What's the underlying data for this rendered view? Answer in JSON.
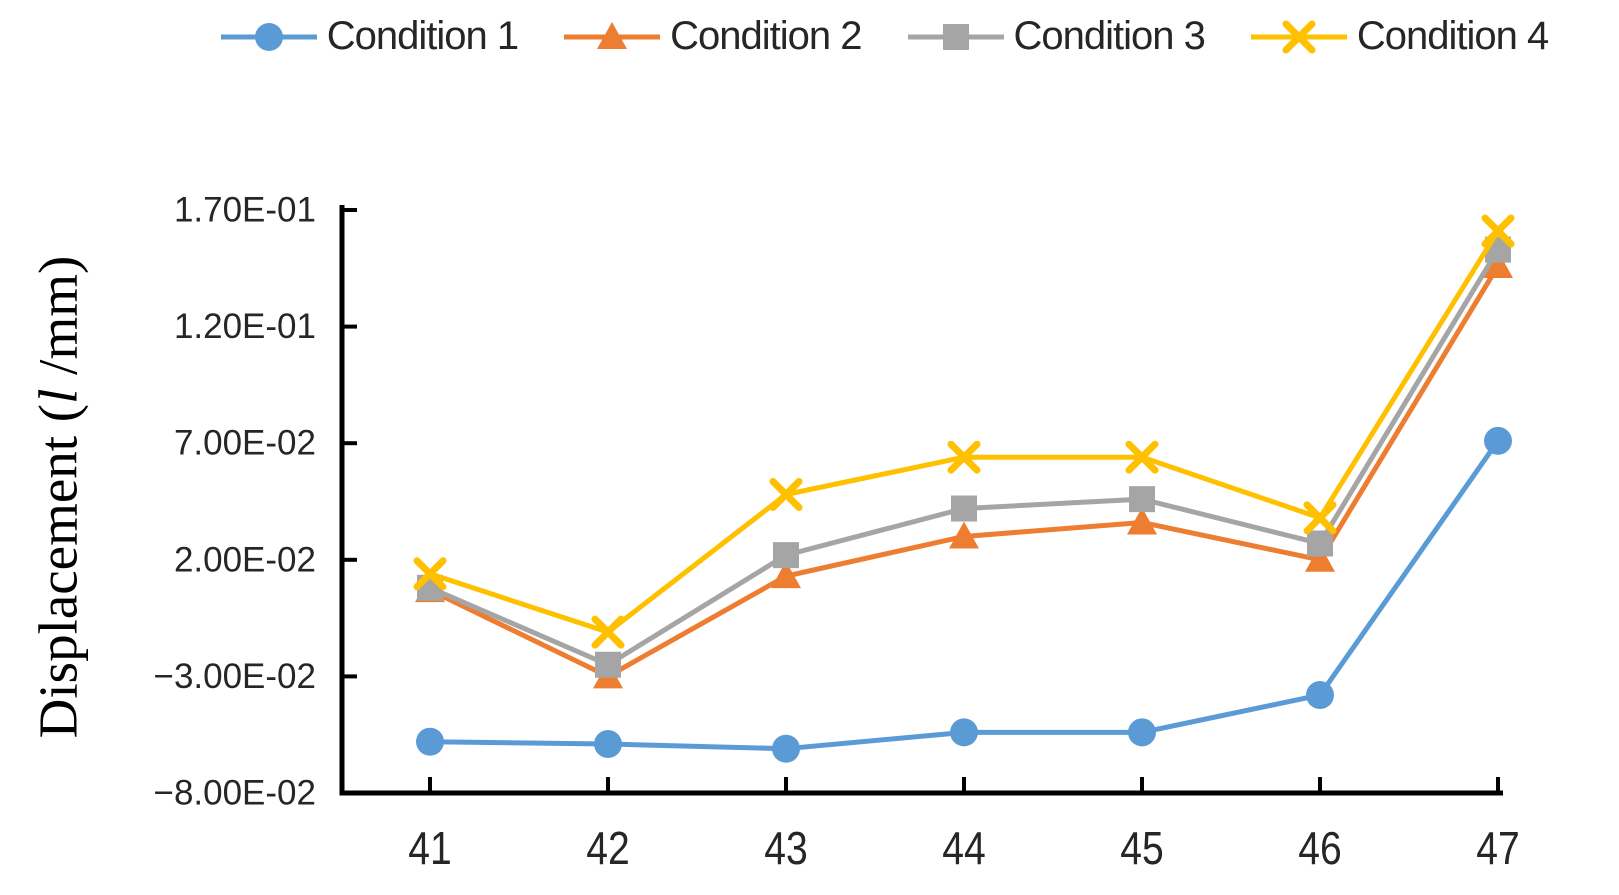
{
  "chart_data": {
    "type": "line",
    "title": "",
    "xlabel": "",
    "ylabel": "Displacement (l /mm)",
    "categories": [
      "41",
      "42",
      "43",
      "44",
      "45",
      "46",
      "47"
    ],
    "ylim": [
      -0.08,
      0.17
    ],
    "y_tick_step": 0.05,
    "grid": false,
    "legend_position": "top",
    "series": [
      {
        "name": "Condition 1",
        "marker": "circle",
        "color": "#5B9BD5",
        "values": [
          -0.058,
          -0.059,
          -0.061,
          -0.054,
          -0.054,
          -0.038,
          0.071
        ]
      },
      {
        "name": "Condition 2",
        "marker": "triangle",
        "color": "#ED7D31",
        "values": [
          0.007,
          -0.03,
          0.013,
          0.03,
          0.036,
          0.02,
          0.146
        ]
      },
      {
        "name": "Condition 3",
        "marker": "square",
        "color": "#A5A5A5",
        "values": [
          0.008,
          -0.025,
          0.022,
          0.042,
          0.046,
          0.027,
          0.153
        ]
      },
      {
        "name": "Condition 4",
        "marker": "x",
        "color": "#FFC000",
        "values": [
          0.014,
          -0.011,
          0.048,
          0.064,
          0.064,
          0.038,
          0.161
        ]
      }
    ]
  },
  "y_axis": {
    "title_prefix": "Displacement (",
    "title_symbol": "l",
    "title_suffix": " /mm)",
    "ticks": [
      {
        "label": "1.70E-01",
        "value": 0.17
      },
      {
        "label": "1.20E-01",
        "value": 0.12
      },
      {
        "label": "7.00E-02",
        "value": 0.07
      },
      {
        "label": "2.00E-02",
        "value": 0.02
      },
      {
        "label": "−3.00E-02",
        "value": -0.03
      },
      {
        "label": "−8.00E-02",
        "value": -0.08
      }
    ]
  },
  "x_axis": {
    "tick_labels": [
      "41",
      "42",
      "43",
      "44",
      "45",
      "46",
      "47"
    ]
  }
}
